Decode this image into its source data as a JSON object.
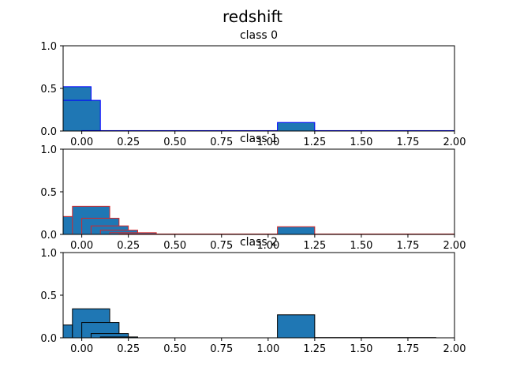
{
  "suptitle": "redshift",
  "chart_data": [
    {
      "type": "bar",
      "title": "class 0",
      "xlim": [
        -0.1,
        2.0
      ],
      "ylim": [
        0,
        1.0
      ],
      "xticks": [
        "0.00",
        "0.25",
        "0.50",
        "0.75",
        "1.00",
        "1.25",
        "1.50",
        "1.75",
        "2.00"
      ],
      "yticks": [
        "0.0",
        "0.5",
        "1.0"
      ],
      "edge_color": "#0000ff",
      "bars": [
        {
          "x0": -0.1,
          "x1": 0.05,
          "value": 0.52
        },
        {
          "x0": -0.1,
          "x1": 0.1,
          "value": 0.36
        },
        {
          "x0": 0.0,
          "x1": 2.0,
          "value": 0.005
        },
        {
          "x0": 1.05,
          "x1": 1.25,
          "value": 0.1
        }
      ]
    },
    {
      "type": "bar",
      "title": "class 1",
      "xlim": [
        -0.1,
        2.0
      ],
      "ylim": [
        0,
        1.0
      ],
      "xticks": [
        "0.00",
        "0.25",
        "0.50",
        "0.75",
        "1.00",
        "1.25",
        "1.50",
        "1.75",
        "2.00"
      ],
      "yticks": [
        "0.0",
        "0.5",
        "1.0"
      ],
      "edge_color": "#d62728",
      "bars": [
        {
          "x0": -0.1,
          "x1": 0.0,
          "value": 0.21
        },
        {
          "x0": -0.05,
          "x1": 0.15,
          "value": 0.33
        },
        {
          "x0": 0.0,
          "x1": 0.2,
          "value": 0.19
        },
        {
          "x0": 0.05,
          "x1": 0.25,
          "value": 0.1
        },
        {
          "x0": 0.1,
          "x1": 0.3,
          "value": 0.05
        },
        {
          "x0": 0.15,
          "x1": 0.4,
          "value": 0.02
        },
        {
          "x0": 0.2,
          "x1": 2.0,
          "value": 0.005
        },
        {
          "x0": 1.05,
          "x1": 1.25,
          "value": 0.09
        }
      ]
    },
    {
      "type": "bar",
      "title": "class 2",
      "xlim": [
        -0.1,
        2.0
      ],
      "ylim": [
        0,
        1.0
      ],
      "xticks": [
        "0.00",
        "0.25",
        "0.50",
        "0.75",
        "1.00",
        "1.25",
        "1.50",
        "1.75",
        "2.00"
      ],
      "yticks": [
        "0.0",
        "0.5",
        "1.0"
      ],
      "edge_color": "#000000",
      "bars": [
        {
          "x0": -0.1,
          "x1": -0.05,
          "value": 0.15
        },
        {
          "x0": -0.05,
          "x1": 0.15,
          "value": 0.34
        },
        {
          "x0": 0.0,
          "x1": 0.2,
          "value": 0.18
        },
        {
          "x0": 0.05,
          "x1": 0.25,
          "value": 0.05
        },
        {
          "x0": 0.1,
          "x1": 0.3,
          "value": 0.01
        },
        {
          "x0": 1.05,
          "x1": 1.25,
          "value": 0.27
        },
        {
          "x0": 1.25,
          "x1": 1.9,
          "value": 0.003
        }
      ]
    }
  ],
  "colors": {
    "bar_fill": "#1f77b4",
    "axes": "#000000",
    "background": "#ffffff"
  }
}
